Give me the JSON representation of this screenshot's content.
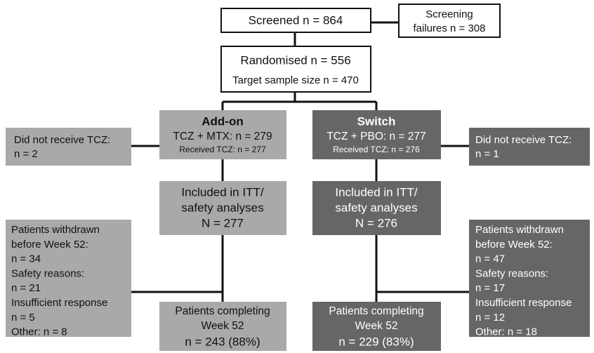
{
  "screened": "Screened n = 864",
  "screening_failures": [
    "Screening",
    "failures n = 308"
  ],
  "randomised": {
    "count": "Randomised n = 556",
    "target": "Target sample size n = 470"
  },
  "arms": [
    {
      "title": "Add-on",
      "treatment": "TCZ + MTX: n = 279",
      "received": "Received TCZ: n = 277",
      "not_received": [
        "Did not receive TCZ:",
        "n = 2"
      ],
      "itt": [
        "Included in ITT/",
        "safety analyses",
        "N = 277"
      ],
      "withdrawn": [
        "Patients withdrawn",
        "before Week 52:",
        "n = 34",
        "Safety reasons:",
        "n = 21",
        "Insufficient response",
        "n = 5",
        "Other: n = 8"
      ],
      "completing": [
        "Patients completing",
        "Week 52",
        "n = 243 (88%)"
      ]
    },
    {
      "title": "Switch",
      "treatment": "TCZ + PBO: n = 277",
      "received": "Received TCZ: n = 276",
      "not_received": [
        "Did not receive TCZ:",
        "n = 1"
      ],
      "itt": [
        "Included in ITT/",
        "safety analyses",
        "N = 276"
      ],
      "withdrawn": [
        "Patients withdrawn",
        "before Week 52:",
        "n = 47",
        "Safety reasons:",
        "n = 17",
        "Insufficient response",
        "n = 12",
        "Other: n = 18"
      ],
      "completing": [
        "Patients completing",
        "Week 52",
        "n = 229 (83%)"
      ]
    }
  ]
}
